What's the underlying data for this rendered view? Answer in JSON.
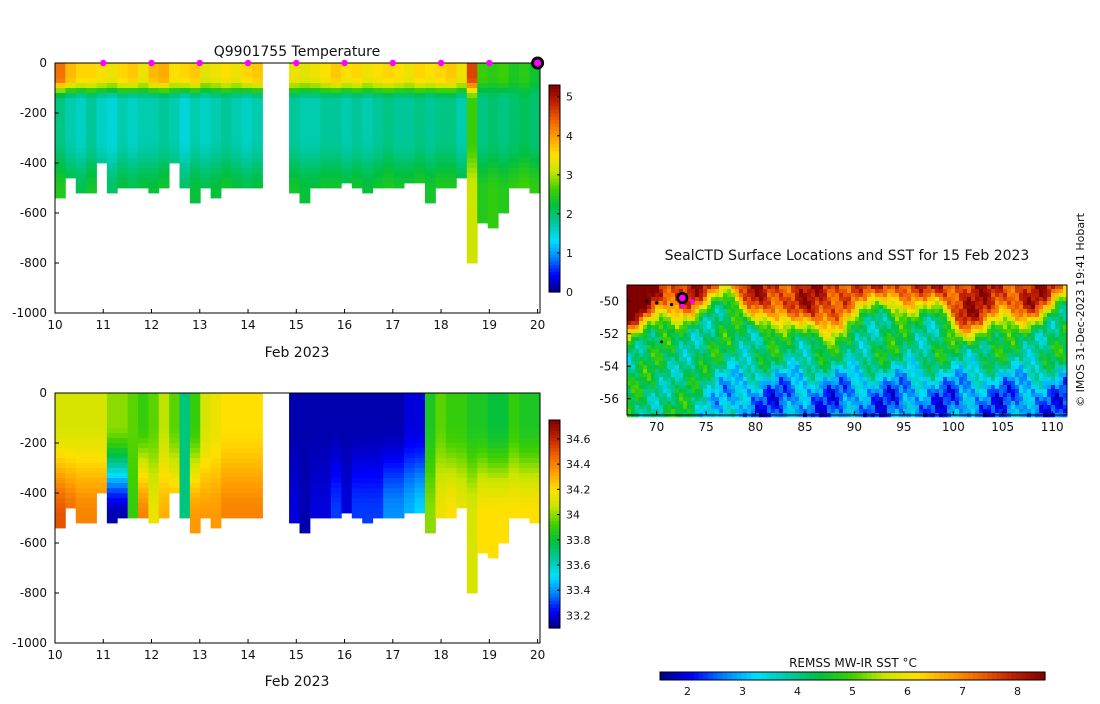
{
  "temperature_panel": {
    "title": "Q9901755  Temperature",
    "xlabel": "Feb 2023"
  },
  "salinity_panel": {
    "xlabel": "Feb 2023"
  },
  "map_panel": {
    "title": "SealCTD Surface Locations and SST for 15 Feb 2023",
    "colorbar_label": "REMSS MW-IR SST °C"
  },
  "credit": "© IMOS 31-Dec-2023 19:41 Hobart",
  "colors": {
    "jet": [
      "#000080",
      "#0000ff",
      "#0080ff",
      "#00e0ff",
      "#00c8a0",
      "#00c040",
      "#40d000",
      "#c8e600",
      "#ffe000",
      "#ffa000",
      "#f06000",
      "#c02000",
      "#800000"
    ],
    "profile_marker": "#ff00ff",
    "last_marker_ring": "#000000"
  },
  "chart_data": [
    {
      "type": "heatmap",
      "title": "Q9901755  Temperature",
      "xlabel": "Feb 2023",
      "ylabel": "",
      "xlim": [
        10,
        20.05
      ],
      "ylim": [
        -1000,
        0
      ],
      "xticks": [
        "10",
        "11",
        "12",
        "13",
        "14",
        "15",
        "16",
        "17",
        "18",
        "19",
        "20"
      ],
      "yticks": [
        "0",
        "-200",
        "-400",
        "-600",
        "-800",
        "-1000"
      ],
      "colorbar": {
        "min": 0,
        "max": 5.3,
        "ticks": [
          "0",
          "1",
          "2",
          "3",
          "4",
          "5"
        ]
      },
      "gap_days": [
        14.3,
        14.85
      ],
      "profile_markers_day": [
        11,
        12,
        13,
        14,
        15,
        16,
        17,
        18,
        19
      ],
      "last_profile_day": 20,
      "profile_max_depth": [
        540,
        450,
        520,
        520,
        400,
        520,
        490,
        490,
        500,
        510,
        490,
        400,
        500,
        560,
        500,
        530,
        500,
        500,
        500,
        500,
        520,
        560,
        500,
        500,
        500,
        480,
        500,
        520,
        500,
        500,
        500,
        470,
        470,
        560,
        500,
        500,
        450,
        800,
        640,
        650,
        590,
        500,
        500,
        520
      ],
      "surface_temperature": [
        4.3,
        3.8,
        3.6,
        3.6,
        3.5,
        3.4,
        3.6,
        3.7,
        3.4,
        3.8,
        3.9,
        3.5,
        3.6,
        3.7,
        3.3,
        3.4,
        3.5,
        3.4,
        3.6,
        3.7,
        3.4,
        3.3,
        3.4,
        3.5,
        3.7,
        3.5,
        3.6,
        3.4,
        3.5,
        3.6,
        3.5,
        3.4,
        3.6,
        3.5,
        3.6,
        3.7,
        3.4,
        4.6,
        2.6,
        2.5,
        2.6,
        2.4,
        2.5,
        2.3
      ],
      "subsurface_temperature": [
        1.9,
        1.7,
        1.6,
        1.8,
        1.6,
        1.5,
        1.7,
        1.6,
        1.7,
        1.7,
        1.8,
        1.7,
        1.5,
        1.7,
        1.6,
        1.7,
        1.8,
        1.7,
        1.6,
        1.7,
        1.8,
        1.7,
        1.7,
        1.8,
        1.8,
        1.7,
        1.8,
        1.7,
        1.8,
        1.9,
        1.8,
        1.8,
        1.9,
        1.8,
        1.9,
        1.9,
        1.7,
        2.6,
        1.9,
        2.0,
        1.9,
        2.0,
        2.1,
        2.0
      ]
    },
    {
      "type": "heatmap",
      "title": "",
      "xlabel": "Feb 2023",
      "ylabel": "",
      "xlim": [
        10,
        20.05
      ],
      "ylim": [
        -1000,
        0
      ],
      "xticks": [
        "10",
        "11",
        "12",
        "13",
        "14",
        "15",
        "16",
        "17",
        "18",
        "19",
        "20"
      ],
      "yticks": [
        "0",
        "-200",
        "-400",
        "-600",
        "-800",
        "-1000"
      ],
      "colorbar": {
        "min": 33.1,
        "max": 34.75,
        "ticks": [
          "33.2",
          "33.4",
          "33.6",
          "33.8",
          "34",
          "34.2",
          "34.4",
          "34.6"
        ]
      },
      "gap_days": [
        14.3,
        14.85
      ],
      "salinity_surface": [
        34.1,
        34.1,
        34.1,
        34.1,
        34.1,
        34.0,
        34.0,
        33.95,
        33.9,
        33.95,
        34.05,
        33.95,
        33.7,
        33.9,
        34.1,
        34.15,
        34.2,
        34.2,
        34.2,
        34.2,
        33.15,
        33.15,
        33.15,
        33.15,
        33.15,
        33.15,
        33.15,
        33.15,
        33.15,
        33.15,
        33.15,
        33.2,
        33.2,
        33.85,
        33.95,
        33.9,
        33.9,
        33.85,
        33.85,
        33.8,
        33.8,
        33.9,
        33.85,
        33.85
      ],
      "salinity_deep": [
        34.5,
        34.45,
        34.4,
        34.4,
        34.4,
        33.15,
        33.15,
        33.9,
        34.4,
        34.15,
        34.3,
        34.3,
        33.7,
        34.35,
        34.35,
        34.35,
        34.4,
        34.4,
        34.4,
        34.4,
        33.2,
        33.15,
        33.2,
        33.2,
        33.3,
        33.2,
        33.3,
        33.3,
        33.3,
        33.4,
        33.4,
        33.45,
        33.5,
        34.0,
        34.15,
        34.2,
        34.15,
        34.1,
        34.2,
        34.2,
        34.2,
        34.2,
        34.2,
        34.2
      ]
    },
    {
      "type": "heatmap",
      "title": "SealCTD Surface Locations and SST for 15 Feb 2023",
      "xlabel": "",
      "ylabel": "",
      "xlim": [
        67,
        111.5
      ],
      "ylim": [
        -57,
        -49
      ],
      "xticks": [
        "70",
        "75",
        "80",
        "85",
        "90",
        "95",
        "100",
        "105",
        "110"
      ],
      "yticks": [
        "-50",
        "-52",
        "-54",
        "-56"
      ],
      "colorbar": {
        "label": "REMSS MW-IR SST °C",
        "min": 1.5,
        "max": 8.5,
        "ticks": [
          "2",
          "3",
          "4",
          "5",
          "6",
          "7",
          "8"
        ]
      },
      "track": [
        [
          69.0,
          -50.0
        ],
        [
          70.0,
          -50.1
        ],
        [
          71.5,
          -50.2
        ],
        [
          72.5,
          -50.3
        ]
      ],
      "track_recent": [
        [
          72.6,
          -50.3
        ],
        [
          73.6,
          -50.0
        ]
      ],
      "last_location": [
        72.6,
        -49.8
      ],
      "isolated_point": [
        70.5,
        -52.5
      ]
    }
  ]
}
